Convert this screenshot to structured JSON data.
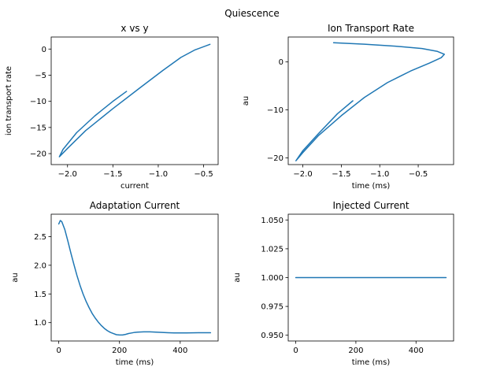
{
  "figure": {
    "suptitle": "Quiescence",
    "line_color": "#1f77b4"
  },
  "chart_data": [
    {
      "type": "line",
      "title": "x vs y",
      "xlabel": "current",
      "ylabel": "ion transport rate",
      "xlim": [
        -2.18,
        -0.34
      ],
      "ylim": [
        -22.1,
        2.3
      ],
      "xticks": [
        {
          "v": -2.0,
          "label": "−2.0"
        },
        {
          "v": -1.5,
          "label": "−1.5"
        },
        {
          "v": -1.0,
          "label": "−1.0"
        },
        {
          "v": -0.5,
          "label": "−0.5"
        }
      ],
      "yticks": [
        {
          "v": -20,
          "label": "−20"
        },
        {
          "v": -15,
          "label": "−15"
        },
        {
          "v": -10,
          "label": "−10"
        },
        {
          "v": -5,
          "label": "−5"
        },
        {
          "v": 0,
          "label": "0"
        }
      ],
      "series": [
        {
          "x": [
            -1.35,
            -1.5,
            -1.7,
            -1.9,
            -2.05,
            -2.09,
            -2.0,
            -1.8,
            -1.5,
            -1.2,
            -0.95,
            -0.75,
            -0.6,
            -0.43
          ],
          "y": [
            -8.1,
            -10.0,
            -12.8,
            -16.0,
            -19.2,
            -20.6,
            -19.0,
            -15.6,
            -11.4,
            -7.4,
            -4.1,
            -1.6,
            -0.2,
            0.9
          ]
        }
      ]
    },
    {
      "type": "line",
      "title": "Ion Transport Rate",
      "xlabel": "time (ms)",
      "ylabel": "au",
      "xlim": [
        -2.19,
        -0.04
      ],
      "ylim": [
        -21.4,
        5.2
      ],
      "xticks": [
        {
          "v": -2.0,
          "label": "−2.0"
        },
        {
          "v": -1.5,
          "label": "−1.5"
        },
        {
          "v": -1.0,
          "label": "−1.0"
        },
        {
          "v": -0.5,
          "label": "−0.5"
        }
      ],
      "yticks": [
        {
          "v": -20,
          "label": "−20"
        },
        {
          "v": -10,
          "label": "−10"
        },
        {
          "v": 0,
          "label": "0"
        }
      ],
      "series": [
        {
          "x": [
            -1.6,
            -1.2,
            -0.8,
            -0.45,
            -0.25,
            -0.16,
            -0.2,
            -0.35,
            -0.6,
            -0.9,
            -1.2,
            -1.5,
            -1.8,
            -2.0,
            -2.09,
            -2.0,
            -1.8,
            -1.55,
            -1.35
          ],
          "y": [
            4.0,
            3.7,
            3.3,
            2.8,
            2.2,
            1.6,
            0.9,
            -0.2,
            -1.9,
            -4.3,
            -7.4,
            -11.2,
            -15.4,
            -18.9,
            -20.6,
            -18.5,
            -15.0,
            -10.8,
            -8.1
          ]
        }
      ]
    },
    {
      "type": "line",
      "title": "Adaptation Current",
      "xlabel": "time (ms)",
      "ylabel": "au",
      "xlim": [
        -25,
        525
      ],
      "ylim": [
        0.68,
        2.89
      ],
      "xticks": [
        {
          "v": 0,
          "label": "0"
        },
        {
          "v": 200,
          "label": "200"
        },
        {
          "v": 400,
          "label": "400"
        }
      ],
      "yticks": [
        {
          "v": 1.0,
          "label": "1.0"
        },
        {
          "v": 1.5,
          "label": "1.5"
        },
        {
          "v": 2.0,
          "label": "2.0"
        },
        {
          "v": 2.5,
          "label": "2.5"
        }
      ],
      "series": [
        {
          "x": [
            0,
            5,
            10,
            20,
            30,
            40,
            50,
            60,
            70,
            80,
            90,
            100,
            110,
            120,
            130,
            140,
            150,
            160,
            170,
            180,
            190,
            200,
            210,
            220,
            230,
            240,
            250,
            260,
            280,
            300,
            320,
            340,
            360,
            380,
            400,
            420,
            440,
            460,
            480,
            500
          ],
          "y": [
            2.72,
            2.78,
            2.76,
            2.62,
            2.42,
            2.21,
            2.01,
            1.82,
            1.65,
            1.5,
            1.37,
            1.26,
            1.16,
            1.08,
            1.01,
            0.95,
            0.9,
            0.86,
            0.83,
            0.81,
            0.79,
            0.785,
            0.785,
            0.795,
            0.81,
            0.82,
            0.83,
            0.835,
            0.84,
            0.84,
            0.835,
            0.83,
            0.825,
            0.82,
            0.82,
            0.82,
            0.822,
            0.825,
            0.825,
            0.825
          ]
        }
      ]
    },
    {
      "type": "line",
      "title": "Injected Current",
      "xlabel": "time (ms)",
      "ylabel": "au",
      "xlim": [
        -25,
        525
      ],
      "ylim": [
        0.945,
        1.055
      ],
      "xticks": [
        {
          "v": 0,
          "label": "0"
        },
        {
          "v": 200,
          "label": "200"
        },
        {
          "v": 400,
          "label": "400"
        }
      ],
      "yticks": [
        {
          "v": 0.95,
          "label": "0.950"
        },
        {
          "v": 0.975,
          "label": "0.975"
        },
        {
          "v": 1.0,
          "label": "1.000"
        },
        {
          "v": 1.025,
          "label": "1.025"
        },
        {
          "v": 1.05,
          "label": "1.050"
        }
      ],
      "series": [
        {
          "x": [
            0,
            500
          ],
          "y": [
            1.0,
            1.0
          ]
        }
      ]
    }
  ]
}
